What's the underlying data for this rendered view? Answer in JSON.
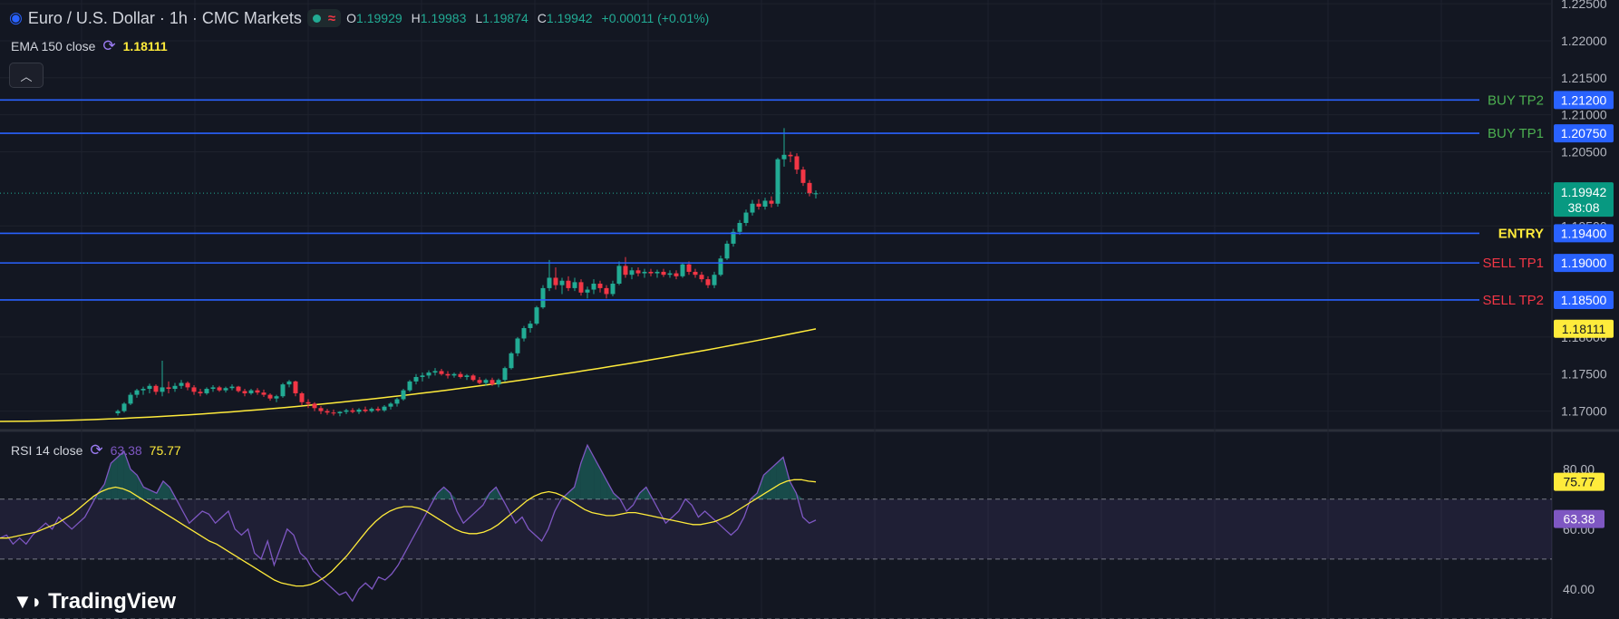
{
  "header": {
    "symbol_title": "Euro / U.S. Dollar · 1h · CMC Markets",
    "market_status_color": "#22ab94",
    "ohlc": {
      "open_label": "O",
      "open": "1.19929",
      "high_label": "H",
      "high": "1.19983",
      "low_label": "L",
      "low": "1.19874",
      "close_label": "C",
      "close": "1.19942",
      "change": "+0.00011 (+0.01%)"
    }
  },
  "ema_legend": {
    "label": "EMA 150 close",
    "value": "1.18111"
  },
  "rsi_legend": {
    "label": "RSI 14 close",
    "rsi_value": "63.38",
    "ma_value": "75.77"
  },
  "logo_text": "TradingView",
  "icons": {
    "symbol": "currency-flag-icon",
    "status": "market-open-dot-icon",
    "wave": "wave-icon",
    "cycle": "refresh-cycle-icon",
    "collapse": "chevron-up-icon"
  },
  "colors": {
    "background": "#131722",
    "up": "#22ab94",
    "down": "#f23645",
    "level_line": "#2962ff",
    "ema": "#ffeb3b",
    "rsi": "#7e57c2",
    "rsi_ma": "#ffeb3b"
  },
  "chart_data": [
    {
      "type": "candlestick",
      "title": "Euro / U.S. Dollar · 1h · CMC Markets",
      "y_axis_position": "right",
      "ylim": [
        1.1675,
        1.2255
      ],
      "y_ticks": [
        "1.22500",
        "1.22000",
        "1.21500",
        "1.21000",
        "1.20500",
        "1.19500",
        "1.18000",
        "1.17500",
        "1.17000"
      ],
      "grid": true,
      "levels": [
        {
          "label": "BUY TP2",
          "value": 1.212,
          "price_label": "1.21200",
          "label_color": "#4caf50"
        },
        {
          "label": "BUY TP1",
          "value": 1.2075,
          "price_label": "1.20750",
          "label_color": "#4caf50"
        },
        {
          "label": "ENTRY",
          "value": 1.194,
          "price_label": "1.19400",
          "label_color": "#ffeb3b"
        },
        {
          "label": "SELL TP1",
          "value": 1.19,
          "price_label": "1.19000",
          "label_color": "#f23645"
        },
        {
          "label": "SELL TP2",
          "value": 1.185,
          "price_label": "1.18500",
          "label_color": "#f23645"
        }
      ],
      "last_price": {
        "value": 1.19942,
        "label": "1.19942",
        "countdown": "38:08"
      },
      "ema_label_value": {
        "value": 1.18111,
        "label": "1.18111"
      },
      "candles_ohlc": [
        [
          1.1697,
          1.1702,
          1.1694,
          1.17
        ],
        [
          1.17,
          1.1712,
          1.1698,
          1.171
        ],
        [
          1.171,
          1.1725,
          1.1708,
          1.1722
        ],
        [
          1.1722,
          1.173,
          1.1718,
          1.1728
        ],
        [
          1.1728,
          1.1733,
          1.1722,
          1.173
        ],
        [
          1.173,
          1.1737,
          1.1724,
          1.1734
        ],
        [
          1.1734,
          1.1736,
          1.1722,
          1.1726
        ],
        [
          1.1726,
          1.1768,
          1.172,
          1.1732
        ],
        [
          1.1732,
          1.174,
          1.1724,
          1.173
        ],
        [
          1.173,
          1.1738,
          1.1726,
          1.1734
        ],
        [
          1.1734,
          1.1742,
          1.173,
          1.1738
        ],
        [
          1.1738,
          1.174,
          1.1728,
          1.1732
        ],
        [
          1.1732,
          1.1735,
          1.1722,
          1.1726
        ],
        [
          1.1726,
          1.173,
          1.172,
          1.1724
        ],
        [
          1.1724,
          1.1732,
          1.1722,
          1.173
        ],
        [
          1.173,
          1.1735,
          1.1726,
          1.1732
        ],
        [
          1.1732,
          1.1734,
          1.1726,
          1.1728
        ],
        [
          1.1728,
          1.1733,
          1.1725,
          1.1731
        ],
        [
          1.1731,
          1.1736,
          1.1728,
          1.1733
        ],
        [
          1.1733,
          1.1734,
          1.1725,
          1.1727
        ],
        [
          1.1727,
          1.173,
          1.172,
          1.1724
        ],
        [
          1.1724,
          1.173,
          1.1722,
          1.1728
        ],
        [
          1.1728,
          1.1731,
          1.1722,
          1.1725
        ],
        [
          1.1725,
          1.1729,
          1.1719,
          1.1722
        ],
        [
          1.1722,
          1.1724,
          1.1714,
          1.1717
        ],
        [
          1.1717,
          1.1722,
          1.1712,
          1.172
        ],
        [
          1.172,
          1.1738,
          1.1718,
          1.1736
        ],
        [
          1.1736,
          1.1742,
          1.1732,
          1.174
        ],
        [
          1.174,
          1.1741,
          1.172,
          1.1724
        ],
        [
          1.1724,
          1.1726,
          1.1708,
          1.1712
        ],
        [
          1.1712,
          1.1716,
          1.1704,
          1.171
        ],
        [
          1.171,
          1.1712,
          1.17,
          1.1704
        ],
        [
          1.1704,
          1.1707,
          1.1696,
          1.17
        ],
        [
          1.17,
          1.1703,
          1.1695,
          1.1698
        ],
        [
          1.1698,
          1.1702,
          1.1694,
          1.1697
        ],
        [
          1.1697,
          1.17,
          1.1693,
          1.1699
        ],
        [
          1.1699,
          1.1703,
          1.1696,
          1.1701
        ],
        [
          1.1701,
          1.1704,
          1.1697,
          1.1699
        ],
        [
          1.1699,
          1.1704,
          1.1696,
          1.1702
        ],
        [
          1.1702,
          1.1706,
          1.1698,
          1.17
        ],
        [
          1.17,
          1.1705,
          1.1698,
          1.1703
        ],
        [
          1.1703,
          1.1706,
          1.1699,
          1.1701
        ],
        [
          1.1701,
          1.1708,
          1.1699,
          1.1706
        ],
        [
          1.1706,
          1.1712,
          1.1702,
          1.171
        ],
        [
          1.171,
          1.1718,
          1.1706,
          1.1716
        ],
        [
          1.1716,
          1.173,
          1.1714,
          1.1728
        ],
        [
          1.1728,
          1.1742,
          1.1726,
          1.174
        ],
        [
          1.174,
          1.175,
          1.1736,
          1.1746
        ],
        [
          1.1746,
          1.1752,
          1.174,
          1.1748
        ],
        [
          1.1748,
          1.1755,
          1.1744,
          1.1752
        ],
        [
          1.1752,
          1.1758,
          1.1748,
          1.1754
        ],
        [
          1.1754,
          1.1757,
          1.1748,
          1.175
        ],
        [
          1.175,
          1.1754,
          1.1744,
          1.1748
        ],
        [
          1.1748,
          1.1752,
          1.1745,
          1.175
        ],
        [
          1.175,
          1.1753,
          1.1744,
          1.1746
        ],
        [
          1.1746,
          1.175,
          1.1742,
          1.1748
        ],
        [
          1.1748,
          1.175,
          1.174,
          1.1742
        ],
        [
          1.1742,
          1.1746,
          1.1736,
          1.1738
        ],
        [
          1.1738,
          1.1744,
          1.1734,
          1.1742
        ],
        [
          1.1742,
          1.1745,
          1.1734,
          1.1736
        ],
        [
          1.1736,
          1.1744,
          1.1732,
          1.1742
        ],
        [
          1.1742,
          1.176,
          1.174,
          1.1758
        ],
        [
          1.1758,
          1.178,
          1.1756,
          1.1778
        ],
        [
          1.1778,
          1.18,
          1.1774,
          1.1798
        ],
        [
          1.1798,
          1.1815,
          1.1794,
          1.1812
        ],
        [
          1.1812,
          1.1822,
          1.1806,
          1.1818
        ],
        [
          1.1818,
          1.1842,
          1.1816,
          1.184
        ],
        [
          1.184,
          1.187,
          1.1838,
          1.1866
        ],
        [
          1.1866,
          1.1904,
          1.1862,
          1.188
        ],
        [
          1.188,
          1.1894,
          1.1864,
          1.187
        ],
        [
          1.187,
          1.188,
          1.1858,
          1.1876
        ],
        [
          1.1876,
          1.1882,
          1.1862,
          1.1866
        ],
        [
          1.1866,
          1.188,
          1.1862,
          1.1874
        ],
        [
          1.1874,
          1.1878,
          1.1856,
          1.186
        ],
        [
          1.186,
          1.1868,
          1.1852,
          1.1864
        ],
        [
          1.1864,
          1.1878,
          1.1858,
          1.1872
        ],
        [
          1.1872,
          1.1876,
          1.186,
          1.1866
        ],
        [
          1.1866,
          1.187,
          1.1852,
          1.1858
        ],
        [
          1.1858,
          1.1876,
          1.1855,
          1.1872
        ],
        [
          1.1872,
          1.1902,
          1.187,
          1.1896
        ],
        [
          1.1896,
          1.1908,
          1.188,
          1.1884
        ],
        [
          1.1884,
          1.1894,
          1.1878,
          1.189
        ],
        [
          1.189,
          1.1894,
          1.1882,
          1.1886
        ],
        [
          1.1886,
          1.1892,
          1.188,
          1.1888
        ],
        [
          1.1888,
          1.1892,
          1.1882,
          1.1886
        ],
        [
          1.1886,
          1.1891,
          1.188,
          1.1888
        ],
        [
          1.1888,
          1.1892,
          1.1881,
          1.1884
        ],
        [
          1.1884,
          1.189,
          1.188,
          1.1886
        ],
        [
          1.1886,
          1.189,
          1.1878,
          1.1882
        ],
        [
          1.1882,
          1.19,
          1.188,
          1.1898
        ],
        [
          1.1898,
          1.1902,
          1.1884,
          1.1888
        ],
        [
          1.1888,
          1.1892,
          1.188,
          1.1884
        ],
        [
          1.1884,
          1.1888,
          1.1874,
          1.1878
        ],
        [
          1.1878,
          1.1882,
          1.1866,
          1.187
        ],
        [
          1.187,
          1.1888,
          1.1866,
          1.1884
        ],
        [
          1.1884,
          1.191,
          1.1882,
          1.1906
        ],
        [
          1.1906,
          1.193,
          1.1904,
          1.1926
        ],
        [
          1.1926,
          1.1946,
          1.1922,
          1.1942
        ],
        [
          1.1942,
          1.1958,
          1.1938,
          1.1954
        ],
        [
          1.1954,
          1.1972,
          1.195,
          1.1968
        ],
        [
          1.1968,
          1.1985,
          1.1964,
          1.198
        ],
        [
          1.198,
          1.1986,
          1.1972,
          1.1976
        ],
        [
          1.1976,
          1.1988,
          1.1972,
          1.1984
        ],
        [
          1.1984,
          1.199,
          1.1975,
          1.198
        ],
        [
          1.198,
          1.2042,
          1.1976,
          1.204
        ],
        [
          1.204,
          1.2082,
          1.203,
          1.2046
        ],
        [
          1.2046,
          1.205,
          1.2036,
          1.2044
        ],
        [
          1.2044,
          1.2048,
          1.202,
          1.2026
        ],
        [
          1.2026,
          1.203,
          1.2004,
          1.2008
        ],
        [
          1.2008,
          1.2012,
          1.199,
          1.1994
        ],
        [
          1.1993,
          1.1998,
          1.1987,
          1.1994
        ]
      ],
      "ema_series": {
        "name": "EMA 150 close",
        "start": 1.1686,
        "end": 1.1811
      }
    },
    {
      "type": "line",
      "title": "RSI 14 close",
      "y_axis_position": "right",
      "ylim": [
        30,
        92
      ],
      "y_ticks": [
        "80.00",
        "60.00",
        "40.00"
      ],
      "bands": [
        70,
        50
      ],
      "series": [
        {
          "name": "RSI",
          "last": 63.38,
          "label": "63.38",
          "values": [
            57,
            58,
            55,
            57,
            55,
            58,
            60,
            62,
            60,
            64,
            62,
            60,
            62,
            64,
            68,
            72,
            75,
            82,
            84,
            86,
            80,
            78,
            74,
            73,
            72,
            76,
            74,
            70,
            66,
            62,
            64,
            66,
            65,
            62,
            64,
            66,
            60,
            58,
            60,
            52,
            50,
            56,
            48,
            54,
            60,
            58,
            52,
            50,
            46,
            44,
            42,
            40,
            38,
            39,
            36,
            40,
            42,
            40,
            44,
            43,
            45,
            48,
            52,
            56,
            60,
            64,
            68,
            72,
            74,
            72,
            66,
            62,
            64,
            66,
            68,
            72,
            74,
            70,
            66,
            62,
            64,
            60,
            58,
            56,
            60,
            66,
            70,
            72,
            74,
            82,
            88,
            84,
            80,
            76,
            72,
            70,
            66,
            68,
            72,
            74,
            70,
            66,
            62,
            64,
            66,
            70,
            68,
            64,
            66,
            64,
            62,
            60,
            58,
            60,
            64,
            70,
            72,
            78,
            80,
            82,
            84,
            76,
            72,
            64,
            62,
            63
          ]
        },
        {
          "name": "RSI-based MA",
          "last": 75.77,
          "label": "75.77",
          "color": "#ffeb3b",
          "values": [
            57,
            57,
            57.5,
            58,
            58.5,
            59,
            60,
            61,
            62,
            63.5,
            65,
            67,
            69,
            71,
            72.5,
            73.5,
            74,
            73.5,
            72.5,
            71,
            69.5,
            68,
            66.5,
            65,
            63.5,
            62,
            60.5,
            59,
            57.5,
            56,
            55,
            53.5,
            52,
            50.5,
            49,
            47.5,
            46,
            44.5,
            43,
            42,
            41.5,
            41,
            41,
            41.5,
            42.5,
            44,
            46,
            48.5,
            51,
            54,
            57,
            60,
            62.5,
            64.5,
            66,
            67,
            67.5,
            67.5,
            67,
            66,
            64.5,
            63,
            61.5,
            60,
            59,
            58.5,
            58.5,
            59,
            60,
            61.5,
            63.5,
            65.5,
            67.5,
            69.5,
            71,
            72,
            72.5,
            72,
            71,
            69.5,
            68,
            66.5,
            65.5,
            65,
            64.5,
            64.5,
            65,
            65.5,
            65.5,
            65,
            64.5,
            64,
            63.5,
            63,
            62.5,
            62,
            61.5,
            61.5,
            62,
            62.5,
            63.5,
            64.5,
            66,
            67.5,
            69,
            70.5,
            72,
            73.5,
            75,
            76,
            76.5,
            76.5,
            76,
            75.77
          ]
        }
      ]
    }
  ]
}
